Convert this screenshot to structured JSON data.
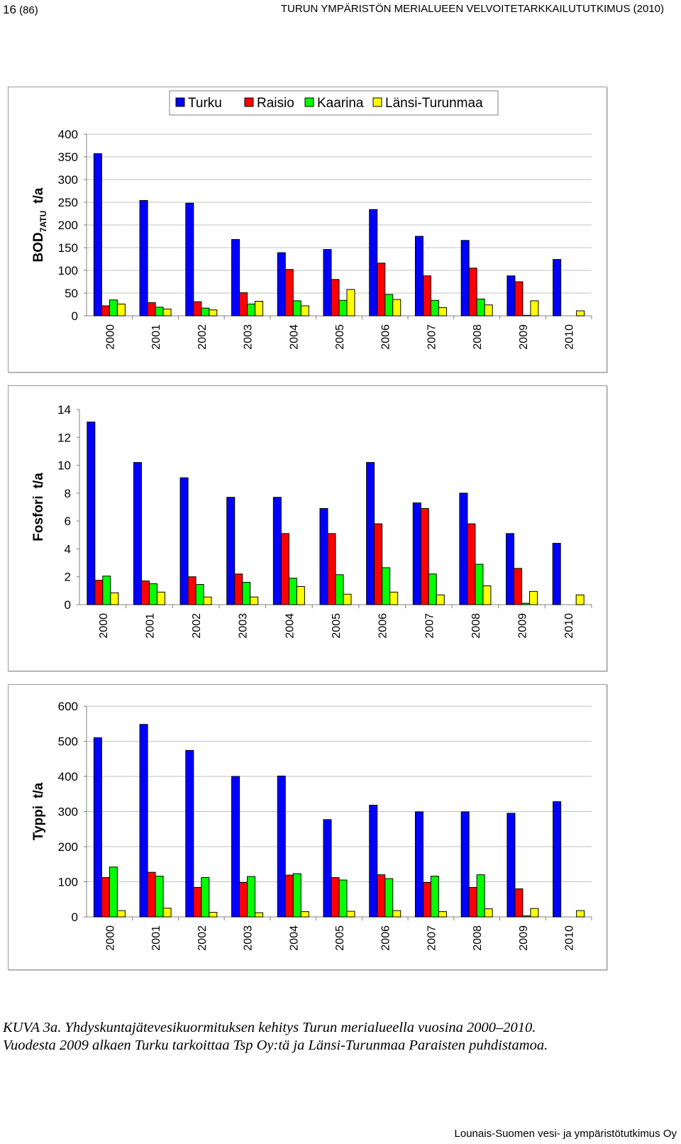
{
  "header": {
    "page_number": "16",
    "page_total": "(86)",
    "report_title": "TURUN YMPÄRISTÖN MERIALUEEN VELVOITETARKKAILUTUTKIMUS (2010)"
  },
  "colors": {
    "Turku": "#0000ff",
    "Raisio": "#ff0000",
    "Kaarina": "#00ff00",
    "Länsi-Turunmaa": "#ffff00",
    "grid": "#c0c0c0",
    "axis": "#808080"
  },
  "chart_data": [
    {
      "type": "bar",
      "title": "",
      "ylabel": "BOD",
      "ylabel_sub": "7ATU",
      "ylabel_unit": "t/a",
      "ylim": [
        0,
        400
      ],
      "yticks": [
        0,
        50,
        100,
        150,
        200,
        250,
        300,
        350,
        400
      ],
      "grid": true,
      "legend": "top",
      "categories": [
        "2000",
        "2001",
        "2002",
        "2003",
        "2004",
        "2005",
        "2006",
        "2007",
        "2008",
        "2009",
        "2010"
      ],
      "series": [
        {
          "name": "Turku",
          "values": [
            357,
            254,
            248,
            168,
            139,
            146,
            234,
            175,
            166,
            88,
            124
          ]
        },
        {
          "name": "Raisio",
          "values": [
            22,
            29,
            31,
            51,
            102,
            80,
            116,
            88,
            105,
            75,
            0
          ]
        },
        {
          "name": "Kaarina",
          "values": [
            35,
            19,
            17,
            26,
            33,
            34,
            47,
            34,
            37,
            1,
            0
          ]
        },
        {
          "name": "Länsi-Turunmaa",
          "values": [
            26,
            15,
            13,
            32,
            22,
            58,
            36,
            18,
            24,
            33,
            11
          ]
        }
      ]
    },
    {
      "type": "bar",
      "title": "",
      "ylabel": "Fosfori",
      "ylabel_sub": "",
      "ylabel_unit": "t/a",
      "ylim": [
        0,
        14
      ],
      "yticks": [
        0,
        2,
        4,
        6,
        8,
        10,
        12,
        14
      ],
      "grid": false,
      "categories": [
        "2000",
        "2001",
        "2002",
        "2003",
        "2004",
        "2005",
        "2006",
        "2007",
        "2008",
        "2009",
        "2010"
      ],
      "series": [
        {
          "name": "Turku",
          "values": [
            13.1,
            10.2,
            9.1,
            7.7,
            7.7,
            6.9,
            10.2,
            7.3,
            8.0,
            5.1,
            4.4
          ]
        },
        {
          "name": "Raisio",
          "values": [
            1.75,
            1.7,
            2.0,
            2.2,
            5.1,
            5.1,
            5.8,
            6.9,
            5.8,
            2.6,
            0
          ]
        },
        {
          "name": "Kaarina",
          "values": [
            2.05,
            1.5,
            1.45,
            1.6,
            1.9,
            2.15,
            2.65,
            2.2,
            2.9,
            0.1,
            0
          ]
        },
        {
          "name": "Länsi-Turunmaa",
          "values": [
            0.85,
            0.9,
            0.55,
            0.55,
            1.3,
            0.75,
            0.9,
            0.7,
            1.35,
            0.95,
            0.7
          ]
        }
      ]
    },
    {
      "type": "bar",
      "title": "",
      "ylabel": "Typpi",
      "ylabel_sub": "",
      "ylabel_unit": "t/a",
      "ylim": [
        0,
        600
      ],
      "yticks": [
        0,
        100,
        200,
        300,
        400,
        500,
        600
      ],
      "grid": true,
      "categories": [
        "2000",
        "2001",
        "2002",
        "2003",
        "2004",
        "2005",
        "2006",
        "2007",
        "2008",
        "2009",
        "2010"
      ],
      "series": [
        {
          "name": "Turku",
          "values": [
            510,
            548,
            474,
            400,
            401,
            277,
            318,
            299,
            299,
            295,
            328
          ]
        },
        {
          "name": "Raisio",
          "values": [
            112,
            127,
            84,
            98,
            119,
            112,
            120,
            98,
            84,
            80,
            0
          ]
        },
        {
          "name": "Kaarina",
          "values": [
            142,
            116,
            112,
            115,
            123,
            105,
            109,
            116,
            120,
            3,
            0
          ]
        },
        {
          "name": "Länsi-Turunmaa",
          "values": [
            18,
            25,
            13,
            12,
            15,
            16,
            18,
            15,
            23,
            24,
            18
          ]
        }
      ]
    }
  ],
  "caption": {
    "line1": "KUVA 3a. Yhdyskuntajätevesikuormituksen kehitys Turun merialueella vuosina 2000–2010.",
    "line2": "Vuodesta 2009 alkaen Turku tarkoittaa Tsp Oy:tä ja Länsi-Turunmaa Paraisten puhdistamoa."
  },
  "footer": {
    "text": "Lounais-Suomen vesi- ja ympäristötutkimus Oy"
  }
}
